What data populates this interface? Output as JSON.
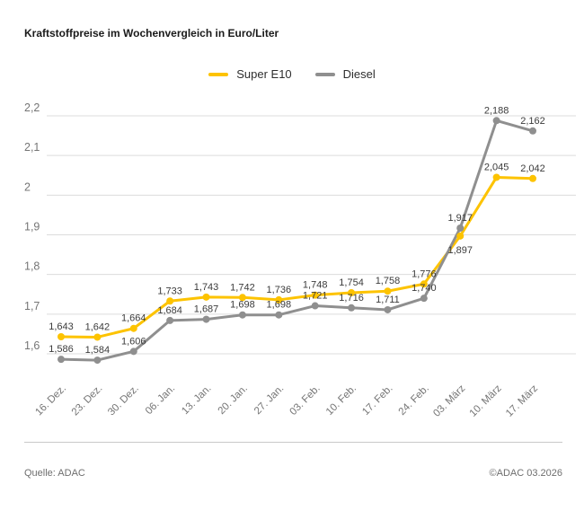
{
  "title": "Kraftstoffpreise im Wochenvergleich in Euro/Liter",
  "footer": {
    "source": "Quelle: ADAC",
    "copyright": "©ADAC 03.2026"
  },
  "colors": {
    "super_e10": "#FDC300",
    "diesel": "#8F8F8F",
    "grid": "#DCDCDC",
    "tick_text": "#757575",
    "value_text": "#3B3B3B"
  },
  "chart_data": {
    "type": "line",
    "title": "Kraftstoffpreise im Wochenvergleich in Euro/Liter",
    "unit": "Euro/Liter",
    "categories": [
      "16. Dez.",
      "23. Dez.",
      "30. Dez.",
      "06. Jan.",
      "13. Jan.",
      "20. Jan.",
      "27. Jan.",
      "03. Feb.",
      "10. Feb.",
      "17. Feb.",
      "24. Feb.",
      "03. März",
      "10. März",
      "17. März"
    ],
    "series": [
      {
        "name": "Super E10",
        "color": "#FDC300",
        "values": [
          1.643,
          1.642,
          1.664,
          1.733,
          1.743,
          1.742,
          1.736,
          1.748,
          1.754,
          1.758,
          1.776,
          1.897,
          2.045,
          2.042
        ]
      },
      {
        "name": "Diesel",
        "color": "#8F8F8F",
        "values": [
          1.586,
          1.584,
          1.606,
          1.684,
          1.687,
          1.698,
          1.698,
          1.721,
          1.716,
          1.711,
          1.74,
          1.917,
          2.188,
          2.162
        ]
      }
    ],
    "ylim": [
      1.6,
      2.2
    ],
    "y_tick_step": 0.1,
    "y_tick_labels": [
      "2,2",
      "2,1",
      "2",
      "1,9",
      "1,8",
      "1,7",
      "1,6"
    ],
    "grid": true,
    "data_labels": true,
    "decimal_separator": ",",
    "legend_position": "top-center",
    "label_position_overrides": [
      {
        "series": 0,
        "index": 11,
        "position": "below"
      }
    ]
  }
}
